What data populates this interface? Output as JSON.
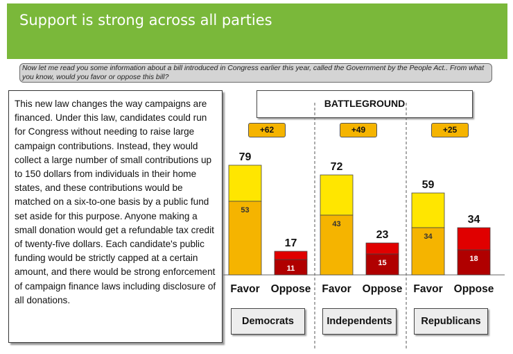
{
  "header": {
    "title": "Support is strong across all parties"
  },
  "question": {
    "text": "Now let me read you some information about a bill introduced in Congress earlier this year, called the Government by the People Act.. From what you know, would you favor or oppose this bill?"
  },
  "description": {
    "text": "This new law changes the way campaigns are financed. Under this law, candidates could run for Congress without needing to raise large campaign contributions. Instead, they would collect a large number of small contributions up to 150 dollars from individuals in their home states, and these contributions would be matched on a six-to-one basis by a public fund set aside for this purpose. Anyone making a small donation would get a refundable tax credit of twenty-five dollars. Each candidate's public funding would be strictly capped at a certain amount, and there would be strong enforcement of campaign finance laws including disclosure of all donations."
  },
  "colors": {
    "header_green": "#7ab83a",
    "favor_light": "#ffe600",
    "favor_strong": "#f5b400",
    "oppose_light": "#e00000",
    "oppose_strong": "#b00000",
    "margin_pill": "#f5b400"
  },
  "chart_data": {
    "type": "bar",
    "title": "BATTLEGROUND",
    "categories": [
      "Favor",
      "Oppose"
    ],
    "groups": [
      {
        "name": "Democrats",
        "margin": "+62",
        "favor": {
          "total": 79,
          "strong": 53
        },
        "oppose": {
          "total": 17,
          "strong": 11
        }
      },
      {
        "name": "Independents",
        "margin": "+49",
        "favor": {
          "total": 72,
          "strong": 43
        },
        "oppose": {
          "total": 23,
          "strong": 15
        }
      },
      {
        "name": "Republicans",
        "margin": "+25",
        "favor": {
          "total": 59,
          "strong": 34
        },
        "oppose": {
          "total": 34,
          "strong": 18
        }
      }
    ],
    "ylim": [
      0,
      100
    ],
    "grid": false,
    "legend": "none"
  }
}
